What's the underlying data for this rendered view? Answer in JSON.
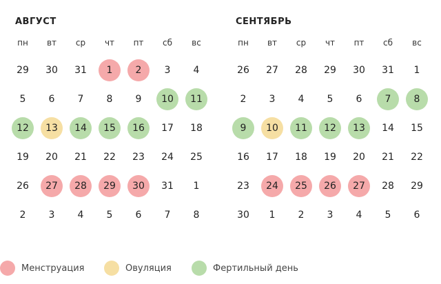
{
  "colors": {
    "menstruation": "#f5a9aa",
    "ovulation": "#f6dfa3",
    "fertile": "#b8dcaa"
  },
  "weekdays": [
    "пн",
    "вт",
    "ср",
    "чт",
    "пт",
    "сб",
    "вс"
  ],
  "months": [
    {
      "title": "АВГУСТ",
      "weeks": [
        [
          {
            "d": "29"
          },
          {
            "d": "30"
          },
          {
            "d": "31"
          },
          {
            "d": "1",
            "t": "m"
          },
          {
            "d": "2",
            "t": "m"
          },
          {
            "d": "3"
          },
          {
            "d": "4"
          }
        ],
        [
          {
            "d": "5"
          },
          {
            "d": "6"
          },
          {
            "d": "7"
          },
          {
            "d": "8"
          },
          {
            "d": "9"
          },
          {
            "d": "10",
            "t": "f"
          },
          {
            "d": "11",
            "t": "f"
          }
        ],
        [
          {
            "d": "12",
            "t": "f"
          },
          {
            "d": "13",
            "t": "o"
          },
          {
            "d": "14",
            "t": "f"
          },
          {
            "d": "15",
            "t": "f"
          },
          {
            "d": "16",
            "t": "f"
          },
          {
            "d": "17"
          },
          {
            "d": "18"
          }
        ],
        [
          {
            "d": "19"
          },
          {
            "d": "20"
          },
          {
            "d": "21"
          },
          {
            "d": "22"
          },
          {
            "d": "23"
          },
          {
            "d": "24"
          },
          {
            "d": "25"
          }
        ],
        [
          {
            "d": "26"
          },
          {
            "d": "27",
            "t": "m"
          },
          {
            "d": "28",
            "t": "m"
          },
          {
            "d": "29",
            "t": "m"
          },
          {
            "d": "30",
            "t": "m"
          },
          {
            "d": "31"
          },
          {
            "d": "1"
          }
        ],
        [
          {
            "d": "2"
          },
          {
            "d": "3"
          },
          {
            "d": "4"
          },
          {
            "d": "5"
          },
          {
            "d": "6"
          },
          {
            "d": "7"
          },
          {
            "d": "8"
          }
        ]
      ]
    },
    {
      "title": "СЕНТЯБРЬ",
      "weeks": [
        [
          {
            "d": "26"
          },
          {
            "d": "27"
          },
          {
            "d": "28"
          },
          {
            "d": "29"
          },
          {
            "d": "30"
          },
          {
            "d": "31"
          },
          {
            "d": "1"
          }
        ],
        [
          {
            "d": "2"
          },
          {
            "d": "3"
          },
          {
            "d": "4"
          },
          {
            "d": "5"
          },
          {
            "d": "6"
          },
          {
            "d": "7",
            "t": "f"
          },
          {
            "d": "8",
            "t": "f"
          }
        ],
        [
          {
            "d": "9",
            "t": "f"
          },
          {
            "d": "10",
            "t": "o"
          },
          {
            "d": "11",
            "t": "f"
          },
          {
            "d": "12",
            "t": "f"
          },
          {
            "d": "13",
            "t": "f"
          },
          {
            "d": "14"
          },
          {
            "d": "15"
          }
        ],
        [
          {
            "d": "16"
          },
          {
            "d": "17"
          },
          {
            "d": "18"
          },
          {
            "d": "19"
          },
          {
            "d": "20"
          },
          {
            "d": "21"
          },
          {
            "d": "22"
          }
        ],
        [
          {
            "d": "23"
          },
          {
            "d": "24",
            "t": "m"
          },
          {
            "d": "25",
            "t": "m"
          },
          {
            "d": "26",
            "t": "m"
          },
          {
            "d": "27",
            "t": "m"
          },
          {
            "d": "28"
          },
          {
            "d": "29"
          }
        ],
        [
          {
            "d": "30"
          },
          {
            "d": "1"
          },
          {
            "d": "2"
          },
          {
            "d": "3"
          },
          {
            "d": "4"
          },
          {
            "d": "5"
          },
          {
            "d": "6"
          }
        ]
      ]
    }
  ],
  "legend": [
    {
      "label": "Менструация",
      "type": "menstruation"
    },
    {
      "label": "Овуляция",
      "type": "ovulation"
    },
    {
      "label": "Фертильный день",
      "type": "fertile"
    }
  ]
}
